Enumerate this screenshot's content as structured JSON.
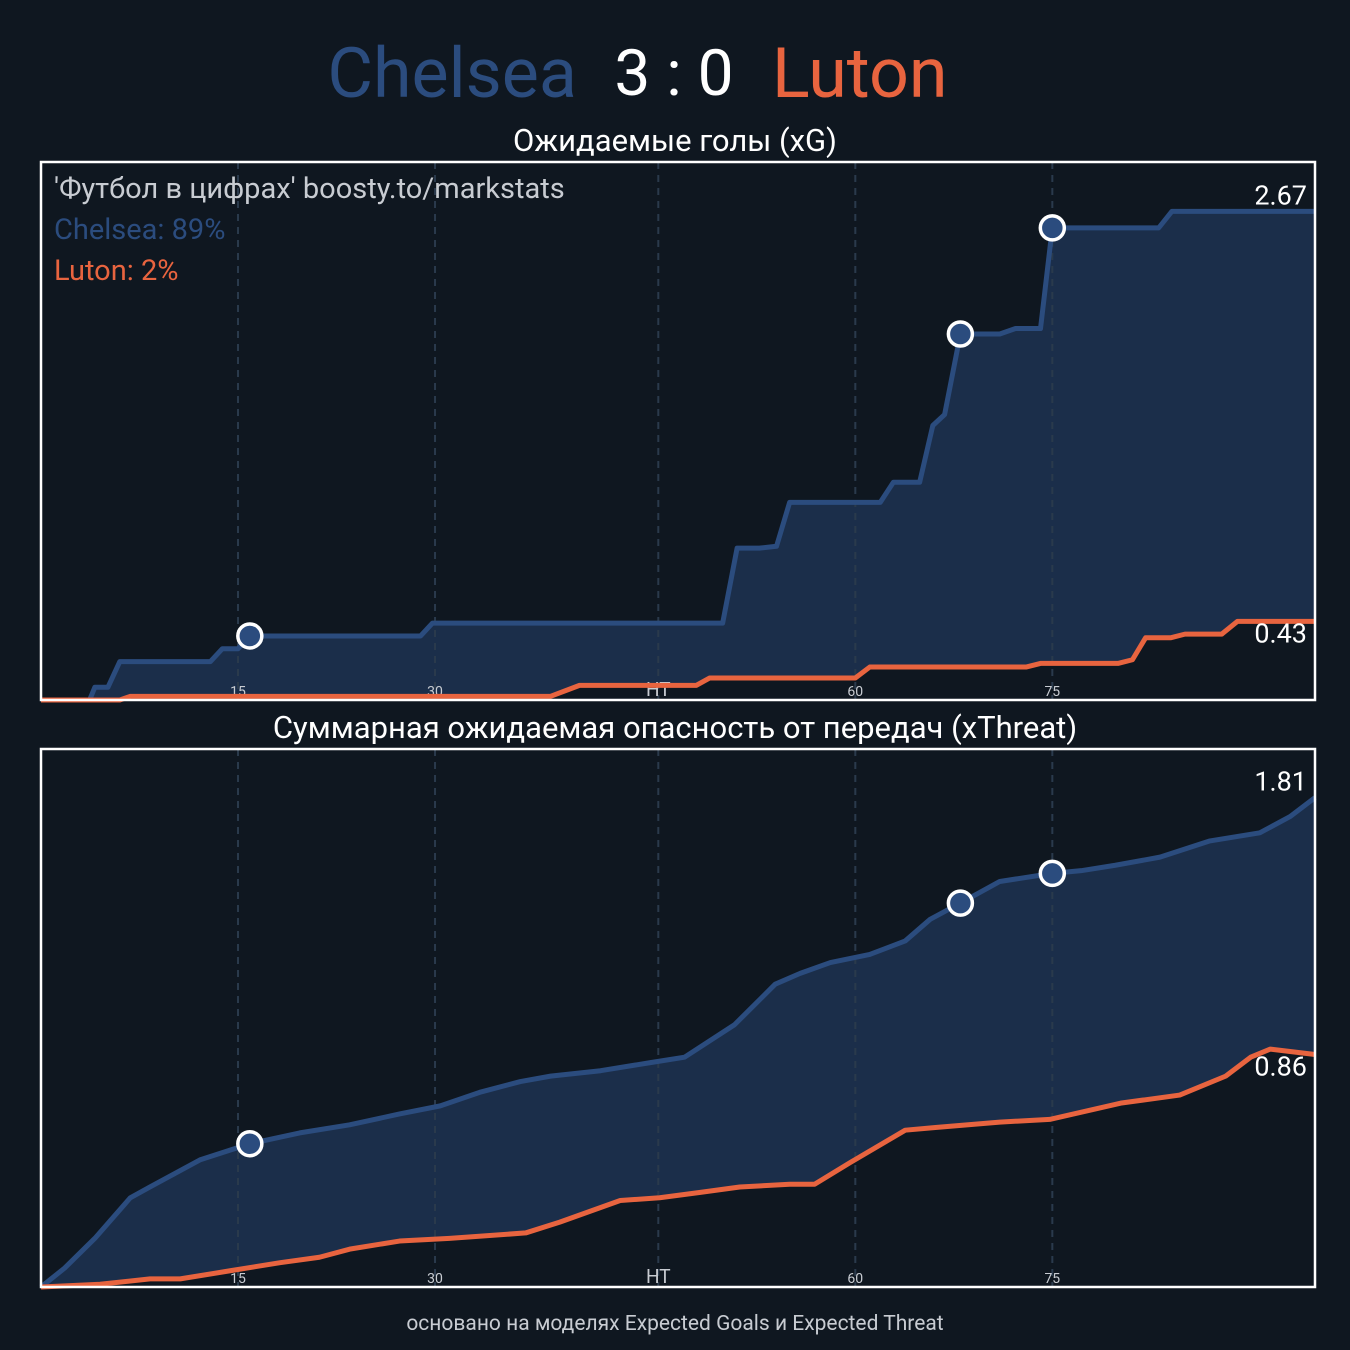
{
  "header": {
    "home": "Chelsea",
    "score": "3 : 0",
    "away": "Luton"
  },
  "footer": "основано на моделях Expected Goals и Expected Threat",
  "chart_data": [
    {
      "type": "line",
      "title": "Ожидаемые голы (xG)",
      "annotations": [
        {
          "text": "'Футбол в цифрах' boosty.to/markstats",
          "color": "#c8ccd2"
        },
        {
          "text": "Chelsea: 89%",
          "color": "#2b4c7e"
        },
        {
          "text": "Luton: 2%",
          "color": "#e8643f"
        }
      ],
      "xlim": [
        0,
        97
      ],
      "ylim": [
        0,
        2.94
      ],
      "xticks": [
        15,
        30,
        {
          "value": 47,
          "label": "HT"
        },
        {
          "value": 62,
          "label": "60"
        },
        {
          "value": 77,
          "label": "75"
        }
      ],
      "grid": true,
      "series": [
        {
          "name": "Chelsea",
          "color": "#2b4c7e",
          "fill": "#1b2e4a",
          "x": [
            0,
            3.7,
            4.1,
            5.1,
            6.0,
            12.9,
            13.8,
            15.0,
            15.9,
            28.9,
            29.8,
            51.9,
            53.0,
            54.7,
            56.0,
            57.0,
            63.9,
            64.9,
            66.9,
            67.9,
            68.8,
            70.0,
            73.0,
            74.2,
            76.1,
            77.0,
            85.1,
            86.1,
            97
          ],
          "values": [
            0,
            0,
            0.07,
            0.07,
            0.21,
            0.21,
            0.28,
            0.28,
            0.35,
            0.35,
            0.42,
            0.42,
            0.83,
            0.83,
            0.84,
            1.08,
            1.08,
            1.19,
            1.19,
            1.5,
            1.56,
            2.0,
            2.0,
            2.03,
            2.03,
            2.58,
            2.58,
            2.67,
            2.67
          ],
          "goals": {
            "x": [
              15.9,
              70.0,
              77.0
            ],
            "values": [
              0.35,
              2.0,
              2.58
            ]
          }
        },
        {
          "name": "Luton",
          "color": "#e8643f",
          "x": [
            0,
            6.0,
            6.8,
            38.8,
            41.0,
            49.9,
            50.9,
            62.0,
            63.1,
            75.0,
            76.1,
            82.0,
            83.1,
            84.1,
            86.0,
            87.1,
            89.9,
            91.1,
            97
          ],
          "values": [
            0,
            0,
            0.02,
            0.02,
            0.08,
            0.08,
            0.12,
            0.12,
            0.18,
            0.18,
            0.2,
            0.2,
            0.22,
            0.34,
            0.34,
            0.36,
            0.36,
            0.43,
            0.43
          ]
        }
      ]
    },
    {
      "type": "line",
      "title": "Суммарная ожидаемая опасность от передач (xThreat)",
      "xlim": [
        0,
        97
      ],
      "ylim": [
        0,
        1.99
      ],
      "xticks": [
        15,
        30,
        {
          "value": 47,
          "label": "HT"
        },
        {
          "value": 62,
          "label": "60"
        },
        {
          "value": 77,
          "label": "75"
        }
      ],
      "grid": true,
      "series": [
        {
          "name": "Chelsea",
          "color": "#2b4c7e",
          "fill": "#1b2e4a",
          "x": [
            0,
            1.8,
            4.1,
            6.8,
            8.3,
            10.2,
            12.1,
            15.9,
            19.7,
            23.5,
            27.3,
            30.4,
            33.4,
            36.5,
            38.8,
            42.6,
            46.4,
            49.0,
            52.8,
            55.9,
            57.8,
            60.1,
            63.1,
            65.8,
            67.7,
            70.0,
            73.0,
            77.0,
            79.2,
            81.8,
            85.2,
            89.0,
            92.8,
            95.1,
            97
          ],
          "values": [
            0,
            0.07,
            0.18,
            0.33,
            0.37,
            0.42,
            0.47,
            0.53,
            0.57,
            0.6,
            0.64,
            0.67,
            0.72,
            0.76,
            0.78,
            0.8,
            0.83,
            0.85,
            0.97,
            1.12,
            1.16,
            1.2,
            1.23,
            1.28,
            1.36,
            1.42,
            1.5,
            1.53,
            1.54,
            1.56,
            1.59,
            1.65,
            1.68,
            1.74,
            1.81
          ],
          "goals": {
            "x": [
              15.9,
              70.0,
              77.0
            ],
            "values": [
              0.53,
              1.42,
              1.53
            ]
          }
        },
        {
          "name": "Luton",
          "color": "#e8643f",
          "x": [
            0,
            4.5,
            8.3,
            10.6,
            14.4,
            18.2,
            21.2,
            23.5,
            27.3,
            31.1,
            36.9,
            39.5,
            44.1,
            47.1,
            50.2,
            53.2,
            57.0,
            58.9,
            61.6,
            65.8,
            68.1,
            73.0,
            76.8,
            82.2,
            86.7,
            90.2,
            92.1,
            93.6,
            97
          ],
          "values": [
            0,
            0.01,
            0.03,
            0.03,
            0.06,
            0.09,
            0.11,
            0.14,
            0.17,
            0.18,
            0.2,
            0.24,
            0.32,
            0.33,
            0.35,
            0.37,
            0.38,
            0.38,
            0.46,
            0.58,
            0.59,
            0.61,
            0.62,
            0.68,
            0.71,
            0.78,
            0.85,
            0.88,
            0.86
          ]
        }
      ]
    }
  ]
}
